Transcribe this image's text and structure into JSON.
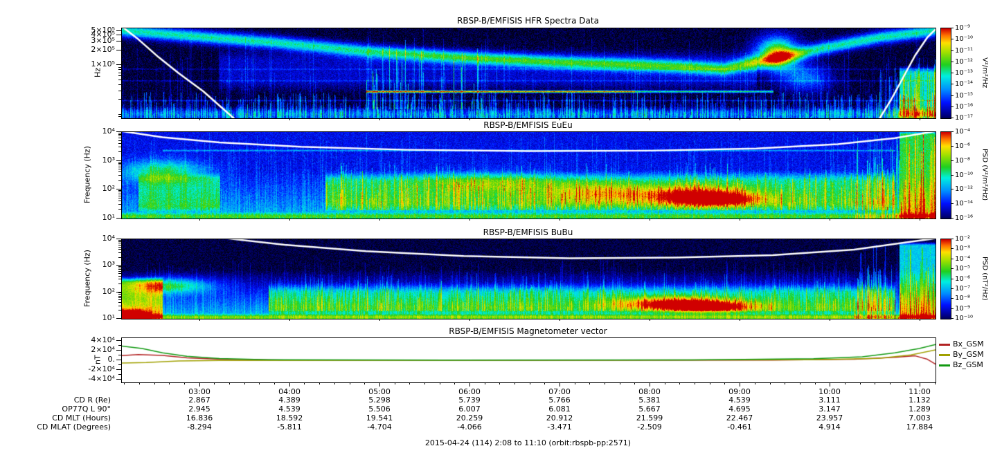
{
  "page": {
    "caption": "2015-04-24 (114) 2:08 to 11:10 (orbit:rbspb-pp:2571)"
  },
  "colormap": [
    [
      0,
      "#000010"
    ],
    [
      0.09,
      "#000084"
    ],
    [
      0.22,
      "#0010ff"
    ],
    [
      0.36,
      "#0090ff"
    ],
    [
      0.5,
      "#00f0e0"
    ],
    [
      0.62,
      "#20d020"
    ],
    [
      0.75,
      "#a0e000"
    ],
    [
      0.85,
      "#ffe000"
    ],
    [
      0.93,
      "#ff7000"
    ],
    [
      1,
      "#d00000"
    ]
  ],
  "chart_data": [
    {
      "type": "spectrogram",
      "title": "RBSP-B/EMFISIS  HFR Spectra Data",
      "ylabel": "Hz",
      "yaxis": {
        "scale": "log",
        "min": 8500,
        "max": 560000,
        "ticks": [
          {
            "v": 500000,
            "label": "5×10⁵"
          },
          {
            "v": 400000,
            "label": "4×10⁵"
          },
          {
            "v": 300000,
            "label": "3×10⁵"
          },
          {
            "v": 200000,
            "label": "2×10⁵"
          },
          {
            "v": 100000,
            "label": "1×10⁵"
          }
        ]
      },
      "colorbar": {
        "title": "V²/m²/Hz",
        "ticks": [
          "10⁻⁹",
          "10⁻¹⁰",
          "10⁻¹¹",
          "10⁻¹²",
          "10⁻¹³",
          "10⁻¹⁴",
          "10⁻¹⁵",
          "10⁻¹⁶",
          "10⁻¹⁷"
        ]
      },
      "time_range": "2:08 to 11:10",
      "spec": {
        "seed": 7,
        "base": 0.03,
        "noise": 0.07,
        "features": [
          {
            "kind": "vstreaks",
            "x0": 0,
            "x1": 1,
            "f0": 0,
            "f1": 0.3,
            "amp": 0.3,
            "density": 0.7
          },
          {
            "kind": "vstreaks",
            "x0": 0,
            "x1": 1,
            "f0": 0,
            "f1": 1,
            "amp": 0.12,
            "density": 0.25
          },
          {
            "kind": "band",
            "x0": 0,
            "x1": 1,
            "f0": 0,
            "f1": 0.1,
            "amp": 0.22,
            "soft": 0.05
          },
          {
            "kind": "curveband",
            "amp": 0.5,
            "w": 0.07,
            "pts": [
              [
                0,
                0.98
              ],
              [
                0.08,
                0.92
              ],
              [
                0.18,
                0.85
              ],
              [
                0.3,
                0.75
              ],
              [
                0.42,
                0.68
              ],
              [
                0.55,
                0.62
              ],
              [
                0.68,
                0.58
              ],
              [
                0.74,
                0.55
              ],
              [
                0.8,
                0.66
              ],
              [
                0.86,
                0.78
              ],
              [
                0.93,
                0.9
              ],
              [
                1,
                0.98
              ]
            ]
          },
          {
            "kind": "band",
            "x0": 0.12,
            "x1": 0.78,
            "f0": 0.35,
            "f1": 0.72,
            "amp": 0.13,
            "soft": 0.1
          },
          {
            "kind": "hline",
            "x0": 0.3,
            "x1": 0.63,
            "f": 0.3,
            "amp": 0.85,
            "w": 0.012
          },
          {
            "kind": "hline",
            "x0": 0.63,
            "x1": 0.8,
            "f": 0.3,
            "amp": 0.5,
            "w": 0.012
          },
          {
            "kind": "vstreaks",
            "x0": 0.3,
            "x1": 0.45,
            "f0": 0.1,
            "f1": 0.95,
            "amp": 0.35,
            "density": 0.35
          },
          {
            "kind": "blob",
            "x": 0.805,
            "f": 0.72,
            "rx": 0.025,
            "rf": 0.18,
            "amp": 0.75
          },
          {
            "kind": "blob",
            "x": 0.84,
            "f": 0.45,
            "rx": 0.03,
            "rf": 0.15,
            "amp": 0.3
          },
          {
            "kind": "band",
            "x0": 0.955,
            "x1": 1,
            "f0": 0,
            "f1": 0.55,
            "amp": 0.45,
            "soft": 0.05
          },
          {
            "kind": "vstreaks",
            "x0": 0.93,
            "x1": 1,
            "f0": 0,
            "f1": 0.7,
            "amp": 0.3,
            "density": 0.8
          },
          {
            "kind": "hline",
            "x0": 0,
            "x1": 1,
            "f": 0.42,
            "amp": 0.1,
            "w": 0.008
          },
          {
            "kind": "hline",
            "x0": 0,
            "x1": 1,
            "f": 0.2,
            "amp": 0.12,
            "w": 0.008
          },
          {
            "kind": "hline",
            "x0": 0,
            "x1": 1,
            "f": 0.55,
            "amp": 0.08,
            "w": 0.008
          }
        ],
        "curves": [
          {
            "width": 2.5,
            "pts": [
              [
                0,
                1.02
              ],
              [
                0.02,
                0.88
              ],
              [
                0.045,
                0.68
              ],
              [
                0.07,
                0.5
              ],
              [
                0.1,
                0.3
              ],
              [
                0.125,
                0.1
              ],
              [
                0.14,
                -0.02
              ]
            ]
          },
          {
            "width": 2.5,
            "pts": [
              [
                0.93,
                -0.02
              ],
              [
                0.945,
                0.2
              ],
              [
                0.96,
                0.45
              ],
              [
                0.975,
                0.7
              ],
              [
                0.99,
                0.9
              ],
              [
                1,
                0.99
              ]
            ]
          }
        ]
      }
    },
    {
      "type": "spectrogram",
      "title": "RBSP-B/EMFISIS  EuEu",
      "ylabel": "Frequency (Hz)",
      "yaxis": {
        "scale": "log",
        "min": 10,
        "max": 10000,
        "ticks": [
          {
            "v": 10000,
            "label": "10⁴"
          },
          {
            "v": 1000,
            "label": "10³"
          },
          {
            "v": 100,
            "label": "10²"
          },
          {
            "v": 10,
            "label": "10¹"
          }
        ]
      },
      "colorbar": {
        "title": "PSD (V²/m²/Hz)",
        "ticks": [
          "10⁻⁴",
          "10⁻⁶",
          "10⁻⁸",
          "10⁻¹⁰",
          "10⁻¹²",
          "10⁻¹⁴",
          "10⁻¹⁶"
        ]
      },
      "time_range": "2:08 to 11:10",
      "spec": {
        "seed": 13,
        "base": 0.2,
        "noise": 0.07,
        "features": [
          {
            "kind": "vstreaks",
            "x0": 0,
            "x1": 1,
            "f0": 0,
            "f1": 1,
            "amp": 0.1,
            "density": 0.6
          },
          {
            "kind": "hgrad",
            "x0": 0,
            "x1": 1,
            "f0": 0,
            "f1": 0.55,
            "amp": 0.18
          },
          {
            "kind": "blob",
            "x": 0.05,
            "f": 0.55,
            "rx": 0.05,
            "rf": 0.12,
            "amp": 0.38
          },
          {
            "kind": "band",
            "x0": 0.02,
            "x1": 0.12,
            "f0": 0.1,
            "f1": 0.5,
            "amp": 0.25,
            "soft": 0.05
          },
          {
            "kind": "band",
            "x0": 0.25,
            "x1": 0.95,
            "f0": 0.12,
            "f1": 0.5,
            "amp": 0.28,
            "soft": 0.08
          },
          {
            "kind": "blob",
            "x": 0.45,
            "f": 0.42,
            "rx": 0.08,
            "rf": 0.12,
            "amp": 0.2
          },
          {
            "kind": "blob",
            "x": 0.58,
            "f": 0.3,
            "rx": 0.06,
            "rf": 0.12,
            "amp": 0.25
          },
          {
            "kind": "blob",
            "x": 0.7,
            "f": 0.28,
            "rx": 0.07,
            "rf": 0.1,
            "amp": 0.45
          },
          {
            "kind": "blob",
            "x": 0.73,
            "f": 0.22,
            "rx": 0.05,
            "rf": 0.07,
            "amp": 0.5
          },
          {
            "kind": "vstreaks",
            "x0": 0.25,
            "x1": 0.95,
            "f0": 0.1,
            "f1": 0.65,
            "amp": 0.25,
            "density": 0.5
          },
          {
            "kind": "hline",
            "x0": 0.05,
            "x1": 0.95,
            "f": 0.79,
            "amp": 0.18,
            "w": 0.01
          },
          {
            "kind": "band",
            "x0": 0.955,
            "x1": 1,
            "f0": 0,
            "f1": 1,
            "amp": 0.4,
            "soft": 0.03
          },
          {
            "kind": "vstreaks",
            "x0": 0.9,
            "x1": 1,
            "f0": 0,
            "f1": 1,
            "amp": 0.3,
            "density": 0.7
          },
          {
            "kind": "band",
            "x0": 0,
            "x1": 1,
            "f0": 0,
            "f1": 0.06,
            "amp": 0.25,
            "soft": 0.03
          }
        ],
        "curves": [
          {
            "width": 2.5,
            "pts": [
              [
                0,
                1.01
              ],
              [
                0.05,
                0.94
              ],
              [
                0.12,
                0.88
              ],
              [
                0.22,
                0.83
              ],
              [
                0.35,
                0.795
              ],
              [
                0.5,
                0.78
              ],
              [
                0.65,
                0.785
              ],
              [
                0.78,
                0.81
              ],
              [
                0.88,
                0.86
              ],
              [
                0.95,
                0.93
              ],
              [
                1,
                1.01
              ]
            ]
          }
        ]
      }
    },
    {
      "type": "spectrogram",
      "title": "RBSP-B/EMFISIS  BuBu",
      "ylabel": "Frequency (Hz)",
      "yaxis": {
        "scale": "log",
        "min": 10,
        "max": 10000,
        "ticks": [
          {
            "v": 10000,
            "label": "10⁴"
          },
          {
            "v": 1000,
            "label": "10³"
          },
          {
            "v": 100,
            "label": "10²"
          },
          {
            "v": 10,
            "label": "10¹"
          }
        ]
      },
      "colorbar": {
        "title": "PSD (nT²/Hz)",
        "ticks": [
          "10⁻²",
          "10⁻³",
          "10⁻⁴",
          "10⁻⁵",
          "10⁻⁶",
          "10⁻⁷",
          "10⁻⁸",
          "10⁻⁹",
          "10⁻¹⁰"
        ]
      },
      "time_range": "2:08 to 11:10",
      "spec": {
        "seed": 29,
        "base": 0.04,
        "noise": 0.05,
        "features": [
          {
            "kind": "hgrad",
            "x0": 0,
            "x1": 1,
            "f0": 0,
            "f1": 0.62,
            "amp": 0.38
          },
          {
            "kind": "vstreaks",
            "x0": 0,
            "x1": 1,
            "f0": 0,
            "f1": 0.75,
            "amp": 0.12,
            "density": 0.6
          },
          {
            "kind": "band",
            "x0": 0.18,
            "x1": 0.95,
            "f0": 0.08,
            "f1": 0.4,
            "amp": 0.25,
            "soft": 0.08
          },
          {
            "kind": "blob",
            "x": 0.06,
            "f": 0.42,
            "rx": 0.05,
            "rf": 0.1,
            "amp": 0.42
          },
          {
            "kind": "band",
            "x0": 0,
            "x1": 0.05,
            "f0": 0,
            "f1": 0.5,
            "amp": 0.45,
            "soft": 0.05
          },
          {
            "kind": "blob",
            "x": 0.01,
            "f": 0.05,
            "rx": 0.02,
            "rf": 0.06,
            "amp": 0.7
          },
          {
            "kind": "blob",
            "x": 0.68,
            "f": 0.2,
            "rx": 0.07,
            "rf": 0.08,
            "amp": 0.5
          },
          {
            "kind": "blob",
            "x": 0.72,
            "f": 0.15,
            "rx": 0.05,
            "rf": 0.06,
            "amp": 0.55
          },
          {
            "kind": "vstreaks",
            "x0": 0.18,
            "x1": 0.95,
            "f0": 0.1,
            "f1": 0.6,
            "amp": 0.2,
            "density": 0.5
          },
          {
            "kind": "band",
            "x0": 0.955,
            "x1": 1,
            "f0": 0,
            "f1": 0.95,
            "amp": 0.4,
            "soft": 0.03
          },
          {
            "kind": "vstreaks",
            "x0": 0.9,
            "x1": 1,
            "f0": 0,
            "f1": 0.95,
            "amp": 0.3,
            "density": 0.7
          },
          {
            "kind": "band",
            "x0": 0,
            "x1": 1,
            "f0": 0,
            "f1": 0.05,
            "amp": 0.3,
            "soft": 0.03
          }
        ],
        "curves": [
          {
            "width": 2.5,
            "pts": [
              [
                0.13,
                1.01
              ],
              [
                0.2,
                0.93
              ],
              [
                0.3,
                0.85
              ],
              [
                0.42,
                0.79
              ],
              [
                0.55,
                0.76
              ],
              [
                0.68,
                0.77
              ],
              [
                0.8,
                0.8
              ],
              [
                0.9,
                0.87
              ],
              [
                0.97,
                0.97
              ],
              [
                1,
                1.01
              ]
            ]
          }
        ]
      }
    },
    {
      "type": "line",
      "title": "RBSP-B/EMFISIS  Magnetometer vector",
      "ylabel": "nT",
      "yaxis": {
        "scale": "linear",
        "min": -45000,
        "max": 45000,
        "minor_step": 10000,
        "ticks": [
          {
            "v": 40000,
            "label": "4×10⁴"
          },
          {
            "v": 20000,
            "label": "2×10⁴"
          },
          {
            "v": 0,
            "label": "0."
          },
          {
            "v": -20000,
            "label": "-2×10⁴"
          },
          {
            "v": -40000,
            "label": "-4×10⁴"
          }
        ]
      },
      "time_range": "2:08 to 11:10",
      "series": [
        {
          "name": "Bx_GSM",
          "color": "#b22222",
          "points": [
            [
              0,
              9500
            ],
            [
              0.02,
              11500
            ],
            [
              0.05,
              10000
            ],
            [
              0.08,
              5000
            ],
            [
              0.12,
              2000
            ],
            [
              0.2,
              500
            ],
            [
              0.5,
              100
            ],
            [
              0.8,
              300
            ],
            [
              0.9,
              2000
            ],
            [
              0.95,
              6000
            ],
            [
              0.975,
              9000
            ],
            [
              0.99,
              2000
            ],
            [
              1,
              -8000
            ]
          ]
        },
        {
          "name": "By_GSM",
          "color": "#a0a000",
          "points": [
            [
              0,
              -5500
            ],
            [
              0.03,
              -4500
            ],
            [
              0.07,
              -1500
            ],
            [
              0.12,
              -200
            ],
            [
              0.3,
              0
            ],
            [
              0.6,
              200
            ],
            [
              0.85,
              1000
            ],
            [
              0.93,
              4000
            ],
            [
              0.97,
              11000
            ],
            [
              1,
              21000
            ]
          ]
        },
        {
          "name": "Bz_GSM",
          "color": "#119911",
          "points": [
            [
              0,
              29000
            ],
            [
              0.025,
              24000
            ],
            [
              0.05,
              15000
            ],
            [
              0.08,
              8000
            ],
            [
              0.12,
              3500
            ],
            [
              0.18,
              1200
            ],
            [
              0.4,
              400
            ],
            [
              0.7,
              800
            ],
            [
              0.85,
              3000
            ],
            [
              0.91,
              7000
            ],
            [
              0.95,
              15000
            ],
            [
              0.98,
              24000
            ],
            [
              1,
              32000
            ]
          ]
        }
      ]
    }
  ],
  "time_axis": {
    "start_min": 128,
    "end_min": 670,
    "major_ticks": [
      {
        "min": 180,
        "label": "03:00"
      },
      {
        "min": 240,
        "label": "04:00"
      },
      {
        "min": 300,
        "label": "05:00"
      },
      {
        "min": 360,
        "label": "06:00"
      },
      {
        "min": 420,
        "label": "07:00"
      },
      {
        "min": 480,
        "label": "08:00"
      },
      {
        "min": 540,
        "label": "09:00"
      },
      {
        "min": 600,
        "label": "10:00"
      },
      {
        "min": 660,
        "label": "11:00"
      }
    ]
  },
  "ephemeris": {
    "rows": [
      {
        "label": "CD R (Re)",
        "values": [
          "2.867",
          "4.389",
          "5.298",
          "5.739",
          "5.766",
          "5.381",
          "4.539",
          "3.111",
          "1.132"
        ]
      },
      {
        "label": "OP77Q L 90°",
        "values": [
          "2.945",
          "4.539",
          "5.506",
          "6.007",
          "6.081",
          "5.667",
          "4.695",
          "3.147",
          "1.289"
        ]
      },
      {
        "label": "CD MLT (Hours)",
        "values": [
          "16.836",
          "18.592",
          "19.541",
          "20.259",
          "20.912",
          "21.599",
          "22.467",
          "23.957",
          "7.003"
        ]
      },
      {
        "label": "CD MLAT (Degrees)",
        "values": [
          "-8.294",
          "-5.811",
          "-4.704",
          "-4.066",
          "-3.471",
          "-2.509",
          "-0.461",
          "4.914",
          "17.884"
        ]
      }
    ]
  }
}
